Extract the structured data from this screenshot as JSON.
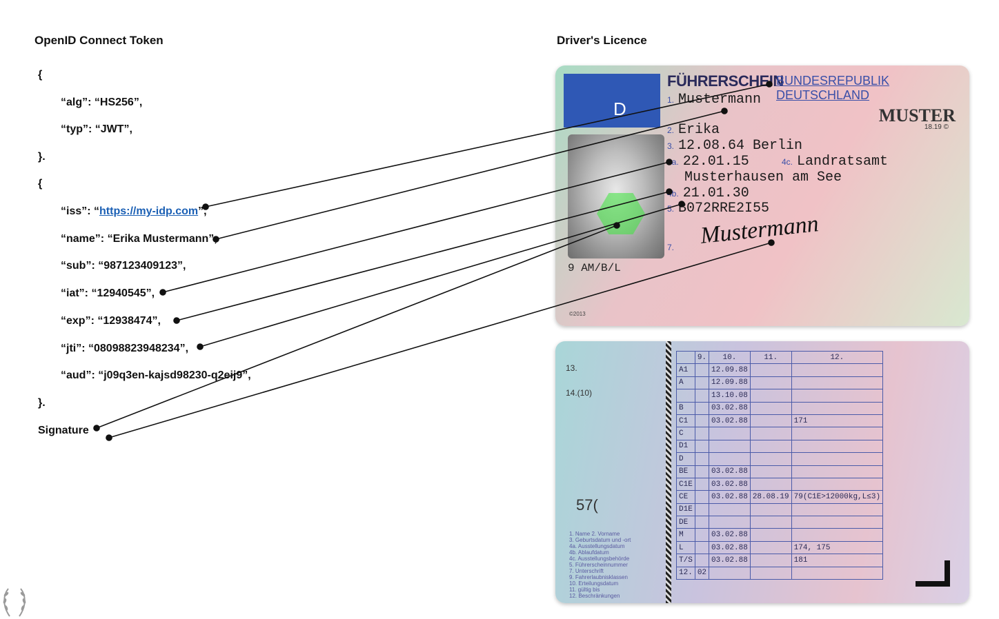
{
  "headings": {
    "left": "OpenID Connect Token",
    "right": "Driver's Licence"
  },
  "token": {
    "open1": "{",
    "alg": "“alg”: “HS256”,",
    "typ": "“typ”: “JWT”,",
    "close1": "}.",
    "open2": "{",
    "iss_prefix": "“iss”: “",
    "iss_link": "https://my-idp.com",
    "iss_suffix": "”,",
    "name": "“name”: “Erika Mustermann”,",
    "sub": "“sub”: “987123409123”,",
    "iat": "“iat”: “12940545”,",
    "exp": "“exp”: “12938474”,",
    "jti": "“jti”: “08098823948234”,",
    "aud": "“aud”: “j09q3en-kajsd98230-q2eij9”,",
    "close2": "}.",
    "signature": "Signature"
  },
  "licence_front": {
    "eu_letter": "D",
    "title": "FÜHRERSCHEIN",
    "country": "BUNDESREPUBLIK DEUTSCHLAND",
    "muster": "MUSTER",
    "muster_sub": "18.19 ©",
    "field1_num": "1.",
    "field1": "Mustermann",
    "field2_num": "2.",
    "field2": "Erika",
    "field3_num": "3.",
    "field3": "12.08.64  Berlin",
    "field4a_num": "4a.",
    "field4a": "22.01.15",
    "field4c_num": "4c.",
    "field4c": "Landratsamt",
    "field4c_cont": "Musterhausen am See",
    "field4b_num": "4b.",
    "field4b": "21.01.30",
    "field5_num": "5.",
    "field5": "B072RRE2I55",
    "field7_num": "7.",
    "signature": "Mustermann",
    "field9": "9 AM/B/L",
    "copyright": "©2013"
  },
  "licence_back": {
    "label13": "13.",
    "label14": "14.(10)",
    "stamp": "57(",
    "headers": [
      "",
      "9.",
      "10.",
      "11.",
      "12."
    ],
    "rows": [
      [
        "A1",
        "",
        "12.09.88",
        "",
        ""
      ],
      [
        "A",
        "",
        "12.09.88",
        "",
        ""
      ],
      [
        "",
        "",
        "13.10.08",
        "",
        ""
      ],
      [
        "B",
        "",
        "03.02.88",
        "",
        ""
      ],
      [
        "C1",
        "",
        "03.02.88",
        "",
        "171"
      ],
      [
        "C",
        "",
        "",
        "",
        ""
      ],
      [
        "D1",
        "",
        "",
        "",
        ""
      ],
      [
        "D",
        "",
        "",
        "",
        ""
      ],
      [
        "BE",
        "",
        "03.02.88",
        "",
        ""
      ],
      [
        "C1E",
        "",
        "03.02.88",
        "",
        ""
      ],
      [
        "CE",
        "",
        "03.02.88",
        "28.08.19",
        "79(C1E>12000kg,L≤3)"
      ],
      [
        "D1E",
        "",
        "",
        "",
        ""
      ],
      [
        "DE",
        "",
        "",
        "",
        ""
      ],
      [
        "M",
        "",
        "03.02.88",
        "",
        ""
      ],
      [
        "L",
        "",
        "03.02.88",
        "",
        "174, 175"
      ],
      [
        "T/S",
        "",
        "03.02.88",
        "",
        "181"
      ],
      [
        "12.",
        "02",
        "",
        "",
        ""
      ]
    ],
    "legend": [
      "1. Name 2. Vorname",
      "3. Geburtsdatum und -ort",
      "4a. Ausstellungsdatum",
      "4b. Ablaufdatum",
      "4c. Ausstellungsbehörde",
      "5. Führerscheinnummer",
      "7. Unterschrift",
      "9. Fahrerlaubnisklassen",
      "10. Erteilungsdatum",
      "11. gültig bis",
      "12. Beschränkungen"
    ]
  }
}
